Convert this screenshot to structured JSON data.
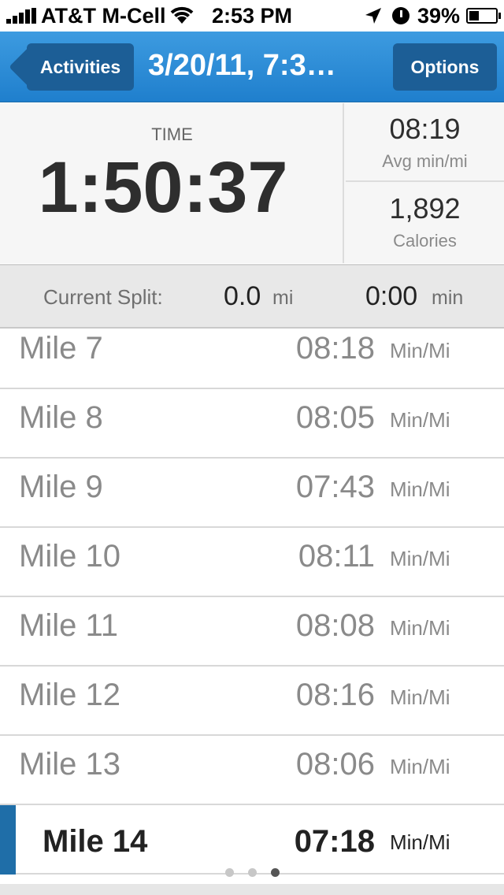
{
  "status_bar": {
    "carrier": "AT&T M-Cell",
    "time": "2:53 PM",
    "battery": "39%",
    "battery_level": 0.39,
    "icons": [
      "signal-bars-icon",
      "wifi-icon",
      "location-arrow-icon",
      "alarm-clock-icon",
      "battery-icon"
    ]
  },
  "nav": {
    "back_label": "Activities",
    "title": "3/20/11, 7:3…",
    "options_label": "Options",
    "accent_color": "#2e8ad8",
    "button_color": "#1c5e96"
  },
  "stats": {
    "time_label": "TIME",
    "time_value": "1:50:37",
    "avg_pace_value": "08:19",
    "avg_pace_label": "Avg min/mi",
    "calories_value": "1,892",
    "calories_label": "Calories"
  },
  "split": {
    "label": "Current Split:",
    "distance": "0.0",
    "distance_unit": "mi",
    "time": "0:00",
    "time_unit": "min"
  },
  "miles": [
    {
      "name": "Mile 7",
      "pace": "08:18",
      "unit": "Min/Mi"
    },
    {
      "name": "Mile 8",
      "pace": "08:05",
      "unit": "Min/Mi"
    },
    {
      "name": "Mile 9",
      "pace": "07:43",
      "unit": "Min/Mi"
    },
    {
      "name": "Mile 10",
      "pace": "08:11",
      "unit": "Min/Mi"
    },
    {
      "name": "Mile 11",
      "pace": "08:08",
      "unit": "Min/Mi"
    },
    {
      "name": "Mile 12",
      "pace": "08:16",
      "unit": "Min/Mi"
    },
    {
      "name": "Mile 13",
      "pace": "08:06",
      "unit": "Min/Mi"
    },
    {
      "name": "Mile 14",
      "pace": "07:18",
      "unit": "Min/Mi",
      "current": true
    }
  ],
  "pager": {
    "count": 3,
    "active": 3
  }
}
